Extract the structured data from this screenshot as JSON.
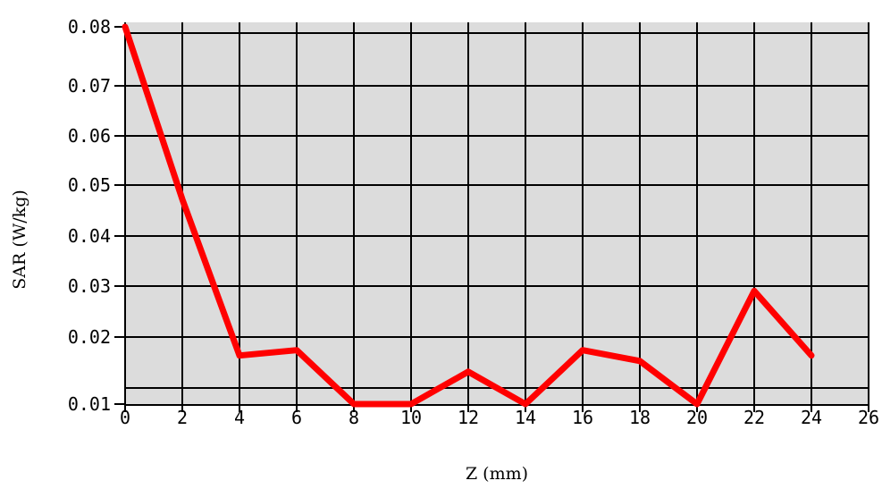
{
  "chart_data": {
    "type": "line",
    "title": "",
    "xlabel": "Z (mm)",
    "ylabel": "SAR (W/kg)",
    "xlim": [
      0,
      26
    ],
    "ylim": [
      0.01,
      0.08
    ],
    "xticks": [
      "0",
      "2",
      "4",
      "6",
      "8",
      "10",
      "12",
      "14",
      "16",
      "18",
      "20",
      "22",
      "24",
      "26"
    ],
    "yticks": [
      "0.08",
      "0.07",
      "0.06",
      "0.05",
      "0.04",
      "0.03",
      "0.02",
      "0.01"
    ],
    "grid": true,
    "plot_background": "#dcdcdc",
    "series": [
      {
        "color": "#ff0000",
        "x": [
          0,
          2,
          4,
          6,
          8,
          10,
          12,
          14,
          16,
          18,
          20,
          22,
          24
        ],
        "y": [
          0.08,
          0.048,
          0.019,
          0.02,
          0.01,
          0.01,
          0.016,
          0.01,
          0.02,
          0.018,
          0.01,
          0.031,
          0.019
        ]
      }
    ]
  }
}
